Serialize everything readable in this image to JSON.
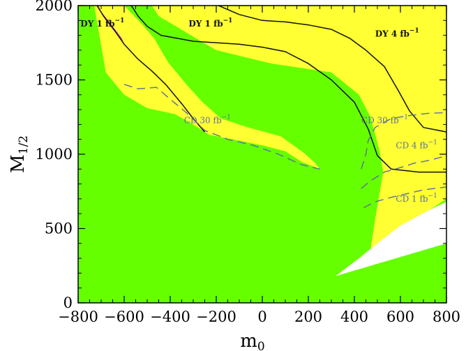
{
  "chart_data": {
    "type": "area",
    "xlabel": "m",
    "xlabel_sub": "0",
    "ylabel": "M",
    "ylabel_sub": "1/2",
    "xlim": [
      -800,
      800
    ],
    "ylim": [
      0,
      2000
    ],
    "xticks": [
      -800,
      -600,
      -400,
      -200,
      0,
      200,
      400,
      600,
      800
    ],
    "yticks": [
      0,
      500,
      1000,
      1500,
      2000
    ],
    "colors": {
      "green": "#66ff00",
      "yellow": "#ffff33",
      "white": "#ffffff",
      "magenta": "#cc44cc",
      "solid": "#111111",
      "dashed": "#5a6ea0"
    },
    "regions": [
      {
        "name": "green",
        "color": "#66ff00",
        "polygon": [
          [
            -800,
            0
          ],
          [
            800,
            0
          ],
          [
            800,
            1000
          ],
          [
            -800,
            1000
          ]
        ]
      }
    ],
    "region_polygons": {
      "green": [
        [
          -800,
          0
        ],
        [
          800,
          0
        ],
        [
          800,
          400
        ],
        [
          318,
          180
        ],
        [
          430,
          370
        ],
        [
          480,
          560
        ],
        [
          510,
          620
        ],
        [
          520,
          880
        ],
        [
          452,
          1200
        ],
        [
          390,
          1380
        ],
        [
          300,
          1490
        ],
        [
          200,
          1540
        ],
        [
          100,
          1540
        ],
        [
          0,
          1580
        ],
        [
          -200,
          1650
        ],
        [
          -340,
          1740
        ],
        [
          -440,
          1920
        ],
        [
          -480,
          2000
        ],
        [
          -800,
          2000
        ]
      ],
      "yellow_top": [
        [
          -730,
          2000
        ],
        [
          800,
          2000
        ],
        [
          800,
          700
        ],
        [
          470,
          360
        ],
        [
          490,
          560
        ],
        [
          525,
          880
        ],
        [
          510,
          1020
        ],
        [
          470,
          1250
        ],
        [
          420,
          1400
        ],
        [
          300,
          1550
        ],
        [
          170,
          1580
        ],
        [
          40,
          1610
        ],
        [
          -200,
          1700
        ],
        [
          -310,
          1800
        ],
        [
          -450,
          1930
        ],
        [
          -480,
          2000
        ],
        [
          -600,
          2000
        ],
        [
          -520,
          1870
        ],
        [
          -470,
          1780
        ],
        [
          -410,
          1620
        ],
        [
          -330,
          1470
        ],
        [
          -260,
          1350
        ],
        [
          -180,
          1240
        ],
        [
          -60,
          1180
        ],
        [
          80,
          1120
        ],
        [
          180,
          1010
        ],
        [
          230,
          940
        ],
        [
          250,
          900
        ],
        [
          170,
          950
        ],
        [
          100,
          1020
        ],
        [
          0,
          1060
        ],
        [
          -130,
          1100
        ],
        [
          -230,
          1130
        ],
        [
          -300,
          1200
        ],
        [
          -380,
          1270
        ],
        [
          -500,
          1310
        ],
        [
          -600,
          1400
        ],
        [
          -680,
          1550
        ]
      ],
      "white_wedge": [
        [
          318,
          180
        ],
        [
          800,
          400
        ],
        [
          800,
          680
        ],
        [
          720,
          620
        ],
        [
          600,
          520
        ],
        [
          500,
          400
        ],
        [
          420,
          300
        ]
      ],
      "magenta_sliver": [
        [
          -712,
          2000
        ],
        [
          -700,
          1960
        ],
        [
          -670,
          1900
        ],
        [
          -630,
          1820
        ],
        [
          -610,
          1780
        ],
        [
          -600,
          1740
        ],
        [
          -640,
          1820
        ],
        [
          -680,
          1900
        ],
        [
          -720,
          2000
        ]
      ]
    },
    "series": [
      {
        "name": "DY 1 fb-1 left",
        "style": "solid",
        "points": [
          [
            -718,
            2000
          ],
          [
            -690,
            1930
          ],
          [
            -640,
            1830
          ],
          [
            -600,
            1740
          ],
          [
            -540,
            1640
          ],
          [
            -480,
            1560
          ],
          [
            -420,
            1470
          ],
          [
            -350,
            1340
          ],
          [
            -300,
            1240
          ],
          [
            -250,
            1150
          ]
        ]
      },
      {
        "name": "DY 1 fb-1 middle",
        "style": "solid",
        "points": [
          [
            -570,
            2000
          ],
          [
            -560,
            1980
          ],
          [
            -540,
            1930
          ],
          [
            -500,
            1860
          ],
          [
            -440,
            1800
          ],
          [
            -300,
            1760
          ],
          [
            -200,
            1750
          ],
          [
            -100,
            1740
          ],
          [
            0,
            1720
          ],
          [
            100,
            1690
          ],
          [
            200,
            1610
          ],
          [
            300,
            1500
          ],
          [
            400,
            1350
          ],
          [
            460,
            1170
          ],
          [
            500,
            990
          ],
          [
            560,
            900
          ],
          [
            680,
            880
          ],
          [
            800,
            880
          ]
        ]
      },
      {
        "name": "DY 4 fb-1",
        "style": "solid",
        "points": [
          [
            -190,
            2000
          ],
          [
            -100,
            1940
          ],
          [
            0,
            1900
          ],
          [
            100,
            1890
          ],
          [
            200,
            1870
          ],
          [
            300,
            1840
          ],
          [
            380,
            1780
          ],
          [
            450,
            1700
          ],
          [
            530,
            1590
          ],
          [
            590,
            1430
          ],
          [
            640,
            1290
          ],
          [
            700,
            1180
          ],
          [
            800,
            1150
          ]
        ]
      },
      {
        "name": "CD 30 fb-1 left",
        "style": "dashed",
        "points": [
          [
            -600,
            1470
          ],
          [
            -540,
            1440
          ],
          [
            -460,
            1450
          ],
          [
            -400,
            1370
          ],
          [
            -330,
            1280
          ],
          [
            -250,
            1160
          ],
          [
            -150,
            1100
          ],
          [
            -40,
            1060
          ],
          [
            70,
            1000
          ],
          [
            170,
            930
          ],
          [
            250,
            900
          ]
        ]
      },
      {
        "name": "CD 30 fb-1 right",
        "style": "dashed",
        "points": [
          [
            430,
            900
          ],
          [
            450,
            1000
          ],
          [
            460,
            1090
          ],
          [
            490,
            1180
          ],
          [
            560,
            1240
          ],
          [
            640,
            1260
          ],
          [
            720,
            1275
          ],
          [
            800,
            1280
          ]
        ]
      },
      {
        "name": "CD 4 fb-1",
        "style": "dashed",
        "points": [
          [
            430,
            770
          ],
          [
            470,
            820
          ],
          [
            530,
            880
          ],
          [
            600,
            910
          ],
          [
            660,
            940
          ],
          [
            730,
            960
          ],
          [
            800,
            990
          ]
        ]
      },
      {
        "name": "CD 1 fb-1",
        "style": "dashed",
        "points": [
          [
            440,
            640
          ],
          [
            490,
            680
          ],
          [
            560,
            710
          ],
          [
            630,
            735
          ],
          [
            700,
            760
          ],
          [
            800,
            780
          ]
        ]
      }
    ],
    "annotations": [
      {
        "id": "dy1_left",
        "text": "DY 1 fb",
        "sup": "−1",
        "x": -790,
        "y": 1860,
        "color": "#111111"
      },
      {
        "id": "dy1_mid",
        "text": "DY 1 fb",
        "sup": "−1",
        "x": -320,
        "y": 1860,
        "color": "#111111"
      },
      {
        "id": "dy4",
        "text": "DY 4 fb",
        "sup": "−1",
        "x": 490,
        "y": 1790,
        "color": "#111111"
      },
      {
        "id": "cd30_left",
        "text": "CD 30 fb",
        "sup": "−1",
        "x": -340,
        "y": 1210,
        "color": "#5a6ea0"
      },
      {
        "id": "cd30_right",
        "text": "CD 30 fb",
        "sup": "−1",
        "x": 430,
        "y": 1210,
        "color": "#5a6ea0"
      },
      {
        "id": "cd4",
        "text": "CD 4 fb",
        "sup": "−1",
        "x": 580,
        "y": 1040,
        "color": "#5a6ea0"
      },
      {
        "id": "cd1",
        "text": "CD 1 fb",
        "sup": "−1",
        "x": 580,
        "y": 680,
        "color": "#5a6ea0"
      }
    ]
  }
}
